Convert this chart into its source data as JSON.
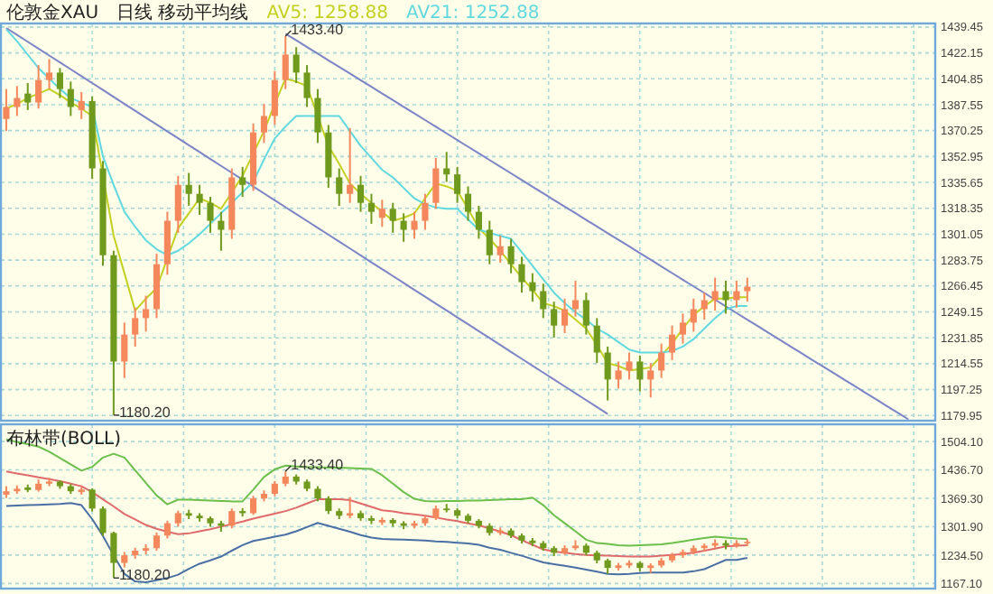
{
  "chart_data": [
    {
      "type": "candlestick",
      "title": "伦敦金XAU",
      "subtitle": "日线 移动平均线",
      "categories": [
        null,
        null,
        null,
        null,
        null,
        null,
        null,
        null,
        null,
        null,
        null,
        null,
        null,
        null,
        null,
        null,
        null,
        null,
        null,
        null,
        null,
        null,
        null,
        null,
        null,
        null,
        null,
        null,
        null,
        null,
        null,
        null,
        null,
        null,
        null,
        null,
        null,
        null,
        null,
        null,
        null,
        null,
        null,
        null,
        null,
        null,
        null,
        null,
        null,
        null,
        null,
        null,
        null,
        null,
        null,
        null,
        null,
        null,
        null,
        null,
        null,
        null,
        null,
        null,
        null,
        null,
        null,
        null,
        null,
        null,
        null,
        null,
        null,
        null,
        null,
        null,
        null,
        null,
        null,
        null,
        null,
        null,
        null,
        null,
        null,
        null,
        null
      ],
      "ohlc": [
        [
          1378,
          1398,
          1370,
          1386
        ],
        [
          1386,
          1400,
          1380,
          1392
        ],
        [
          1395,
          1402,
          1384,
          1389
        ],
        [
          1389,
          1414,
          1385,
          1404
        ],
        [
          1404,
          1418,
          1398,
          1409
        ],
        [
          1409,
          1412,
          1392,
          1398
        ],
        [
          1398,
          1403,
          1380,
          1386
        ],
        [
          1384,
          1396,
          1378,
          1390
        ],
        [
          1390,
          1393,
          1338,
          1345
        ],
        [
          1345,
          1350,
          1280,
          1287
        ],
        [
          1287,
          1290,
          1180.2,
          1216
        ],
        [
          1216,
          1242,
          1205,
          1234
        ],
        [
          1234,
          1252,
          1226,
          1245
        ],
        [
          1245,
          1260,
          1236,
          1251
        ],
        [
          1251,
          1288,
          1245,
          1281
        ],
        [
          1281,
          1316,
          1274,
          1310
        ],
        [
          1310,
          1340,
          1302,
          1334
        ],
        [
          1334,
          1342,
          1320,
          1328
        ],
        [
          1328,
          1334,
          1314,
          1322
        ],
        [
          1322,
          1326,
          1302,
          1310
        ],
        [
          1310,
          1316,
          1290,
          1304
        ],
        [
          1304,
          1345,
          1298,
          1339
        ],
        [
          1339,
          1346,
          1326,
          1334
        ],
        [
          1334,
          1375,
          1330,
          1369
        ],
        [
          1369,
          1388,
          1362,
          1380
        ],
        [
          1380,
          1410,
          1374,
          1404
        ],
        [
          1404,
          1433.4,
          1398,
          1421
        ],
        [
          1421,
          1426,
          1402,
          1409
        ],
        [
          1409,
          1414,
          1386,
          1392
        ],
        [
          1392,
          1398,
          1362,
          1369
        ],
        [
          1369,
          1374,
          1332,
          1339
        ],
        [
          1339,
          1345,
          1320,
          1328
        ],
        [
          1328,
          1372,
          1322,
          1334
        ],
        [
          1334,
          1340,
          1316,
          1322
        ],
        [
          1322,
          1328,
          1308,
          1316
        ],
        [
          1312,
          1324,
          1306,
          1318
        ],
        [
          1318,
          1322,
          1302,
          1310
        ],
        [
          1310,
          1315,
          1296,
          1304
        ],
        [
          1304,
          1316,
          1298,
          1310
        ],
        [
          1310,
          1328,
          1304,
          1322
        ],
        [
          1322,
          1352,
          1318,
          1345
        ],
        [
          1345,
          1356,
          1336,
          1341
        ],
        [
          1341,
          1346,
          1322,
          1328
        ],
        [
          1328,
          1333,
          1310,
          1316
        ],
        [
          1316,
          1320,
          1298,
          1304
        ],
        [
          1304,
          1310,
          1281,
          1287
        ],
        [
          1287,
          1300,
          1282,
          1293
        ],
        [
          1293,
          1298,
          1275,
          1281
        ],
        [
          1281,
          1286,
          1262,
          1269
        ],
        [
          1269,
          1275,
          1256,
          1263
        ],
        [
          1263,
          1268,
          1245,
          1251
        ],
        [
          1251,
          1256,
          1232,
          1240
        ],
        [
          1240,
          1258,
          1235,
          1251
        ],
        [
          1251,
          1270,
          1246,
          1257
        ],
        [
          1257,
          1262,
          1234,
          1240
        ],
        [
          1240,
          1245,
          1215,
          1222
        ],
        [
          1222,
          1226,
          1190,
          1204
        ],
        [
          1204,
          1216,
          1198,
          1210
        ],
        [
          1210,
          1222,
          1204,
          1216
        ],
        [
          1216,
          1220,
          1196,
          1204
        ],
        [
          1204,
          1215,
          1192,
          1210
        ],
        [
          1210,
          1228,
          1205,
          1222
        ],
        [
          1222,
          1240,
          1217,
          1234
        ],
        [
          1234,
          1248,
          1228,
          1242
        ],
        [
          1242,
          1258,
          1236,
          1251
        ],
        [
          1251,
          1262,
          1244,
          1257
        ],
        [
          1257,
          1272,
          1250,
          1263
        ],
        [
          1263,
          1270,
          1248,
          1257
        ],
        [
          1257,
          1270,
          1252,
          1263
        ],
        [
          1263,
          1272,
          1256,
          1266
        ],
        null,
        null,
        null,
        null,
        null,
        null,
        null,
        null,
        null,
        null,
        null,
        null,
        null,
        null,
        null,
        null,
        null
      ],
      "series": [
        {
          "type": "line",
          "color": "#7c84c8",
          "values": [
            1438.8,
            1434.2,
            1429.6,
            1425.0,
            1420.4,
            1415.8,
            1411.2,
            1406.6,
            1402.0,
            1397.4,
            1392.7,
            1388.1,
            1383.5,
            1378.9,
            1374.3,
            1369.7,
            1365.1,
            1360.5,
            1355.9,
            1351.3,
            1346.7,
            1342.1,
            1337.5,
            1332.9,
            1328.3,
            1323.7,
            1319.1,
            1314.5,
            1309.9,
            1305.3,
            1300.7,
            1296.1,
            1291.5,
            1286.9,
            1282.3,
            1277.7,
            1273.1,
            1268.5,
            1263.9,
            1259.3,
            1254.7,
            1250.1,
            1245.5,
            1240.9,
            1236.3,
            1231.7,
            1227.1,
            1222.4,
            1217.8,
            1213.2,
            1208.6,
            1204.0,
            1199.4,
            1194.8,
            1190.2,
            1185.6,
            1181.0,
            null,
            null,
            null,
            null,
            null,
            null,
            null,
            null,
            null,
            null,
            null,
            null,
            null,
            null,
            null,
            null,
            null,
            null,
            null,
            null,
            null,
            null,
            null,
            null,
            null,
            null,
            null,
            null,
            null,
            null
          ]
        },
        {
          "type": "line",
          "color": "#7c84c8",
          "values": [
            null,
            null,
            null,
            null,
            null,
            null,
            null,
            null,
            null,
            null,
            null,
            null,
            null,
            null,
            null,
            null,
            null,
            null,
            null,
            null,
            null,
            null,
            null,
            null,
            null,
            null,
            1435.0,
            1430.6,
            1426.1,
            1421.7,
            1417.2,
            1412.8,
            1408.4,
            1403.9,
            1399.5,
            1395.0,
            1390.6,
            1386.1,
            1381.7,
            1377.3,
            1372.8,
            1368.4,
            1363.9,
            1359.5,
            1355.0,
            1350.6,
            1346.2,
            1341.7,
            1337.3,
            1332.8,
            1328.4,
            1323.9,
            1319.5,
            1315.1,
            1310.6,
            1306.2,
            1301.7,
            1297.3,
            1292.9,
            1288.4,
            1284.0,
            1279.5,
            1275.1,
            1270.6,
            1266.2,
            1261.8,
            1257.3,
            1252.9,
            1248.4,
            1244.0,
            1239.6,
            1235.1,
            1230.7,
            1226.2,
            1221.8,
            1217.3,
            1212.9,
            1208.5,
            1204.0,
            1199.6,
            1195.1,
            1190.7,
            1186.2,
            1181.8,
            1177.4,
            null,
            null
          ]
        },
        {
          "type": "line",
          "name": "AV5: 1258.88",
          "color": "#c4d020",
          "values": [
            1385,
            1388,
            1392,
            1395,
            1398,
            1394,
            1389,
            1385,
            1380,
            1340,
            1300,
            1275,
            1250,
            1258,
            1265,
            1285,
            1305,
            1315,
            1325,
            1322,
            1318,
            1329,
            1340,
            1355,
            1370,
            1388,
            1405,
            1403,
            1400,
            1380,
            1360,
            1348,
            1335,
            1328,
            1322,
            1316,
            1310,
            1312,
            1315,
            1325,
            1335,
            1333,
            1330,
            1318,
            1305,
            1298,
            1290,
            1281,
            1272,
            1264,
            1255,
            1253,
            1250,
            1244,
            1238,
            1227,
            1215,
            1213,
            1210,
            1211,
            1212,
            1220,
            1228,
            1238,
            1247,
            1253,
            1258,
            1258,
            1259,
            1259,
            null,
            null,
            null,
            null,
            null,
            null,
            null,
            null,
            null,
            null,
            null,
            null,
            null,
            null,
            null,
            null,
            null
          ]
        },
        {
          "type": "line",
          "name": "AV21: 1252.88",
          "color": "#5fd8e0",
          "values": [
            1438,
            1430,
            1421,
            1412,
            1405,
            1398,
            1392,
            1389,
            1386,
            1353,
            1334,
            1316,
            1306,
            1297,
            1291,
            1287,
            1290,
            1295,
            1301,
            1308,
            1315,
            1322,
            1329,
            1336,
            1351,
            1365,
            1373,
            1380,
            1380,
            1380,
            1380,
            1380,
            1370,
            1360,
            1352,
            1344,
            1339,
            1332,
            1325,
            1321,
            1319,
            1318,
            1318,
            1311,
            1304,
            1302,
            1300,
            1298,
            1289,
            1280,
            1271,
            1262,
            1255,
            1249,
            1244,
            1238,
            1234,
            1229,
            1224,
            1222,
            1222,
            1222,
            1223,
            1226,
            1231,
            1238,
            1245,
            1251,
            1253,
            1253,
            null,
            null,
            null,
            null,
            null,
            null,
            null,
            null,
            null,
            null,
            null,
            null,
            null,
            null,
            null,
            null,
            null
          ]
        }
      ],
      "ylim": [
        1176.5,
        1441.8
      ],
      "yticks": [
        1439.45,
        1422.15,
        1404.85,
        1387.55,
        1370.25,
        1352.95,
        1335.65,
        1318.35,
        1301.05,
        1283.75,
        1266.45,
        1249.15,
        1231.85,
        1214.55,
        1197.25,
        1179.95
      ],
      "grid": true,
      "tick_labels": "y",
      "annotations": [
        "1433.40",
        "1180.20"
      ]
    },
    {
      "type": "candlestick",
      "title": "布林带(BOLL)",
      "categories": [
        null,
        null,
        null,
        null,
        null,
        null,
        null,
        null,
        null,
        null,
        null,
        null,
        null,
        null,
        null,
        null,
        null,
        null,
        null,
        null,
        null,
        null,
        null,
        null,
        null,
        null,
        null,
        null,
        null,
        null,
        null,
        null,
        null,
        null,
        null,
        null,
        null,
        null,
        null,
        null,
        null,
        null,
        null,
        null,
        null,
        null,
        null,
        null,
        null,
        null,
        null,
        null,
        null,
        null,
        null,
        null,
        null,
        null,
        null,
        null,
        null,
        null,
        null,
        null,
        null,
        null,
        null,
        null,
        null,
        null,
        null,
        null,
        null,
        null,
        null,
        null,
        null,
        null,
        null,
        null,
        null,
        null,
        null,
        null,
        null,
        null,
        null
      ],
      "ohlc": [
        [
          1378,
          1398,
          1370,
          1386
        ],
        [
          1386,
          1400,
          1380,
          1392
        ],
        [
          1395,
          1402,
          1384,
          1389
        ],
        [
          1389,
          1414,
          1385,
          1404
        ],
        [
          1404,
          1418,
          1398,
          1409
        ],
        [
          1409,
          1412,
          1392,
          1398
        ],
        [
          1398,
          1403,
          1380,
          1386
        ],
        [
          1384,
          1396,
          1378,
          1390
        ],
        [
          1390,
          1393,
          1338,
          1345
        ],
        [
          1345,
          1350,
          1280,
          1287
        ],
        [
          1287,
          1290,
          1180.2,
          1216
        ],
        [
          1216,
          1242,
          1205,
          1234
        ],
        [
          1234,
          1252,
          1226,
          1245
        ],
        [
          1245,
          1260,
          1236,
          1251
        ],
        [
          1251,
          1288,
          1245,
          1281
        ],
        [
          1281,
          1316,
          1274,
          1310
        ],
        [
          1310,
          1340,
          1302,
          1334
        ],
        [
          1334,
          1342,
          1320,
          1328
        ],
        [
          1328,
          1334,
          1314,
          1322
        ],
        [
          1322,
          1326,
          1302,
          1310
        ],
        [
          1310,
          1316,
          1290,
          1304
        ],
        [
          1304,
          1345,
          1298,
          1339
        ],
        [
          1339,
          1346,
          1326,
          1334
        ],
        [
          1334,
          1375,
          1330,
          1369
        ],
        [
          1369,
          1388,
          1362,
          1380
        ],
        [
          1380,
          1410,
          1374,
          1404
        ],
        [
          1404,
          1433.4,
          1398,
          1421
        ],
        [
          1421,
          1426,
          1402,
          1409
        ],
        [
          1409,
          1414,
          1386,
          1392
        ],
        [
          1392,
          1398,
          1362,
          1369
        ],
        [
          1369,
          1374,
          1332,
          1339
        ],
        [
          1339,
          1345,
          1320,
          1328
        ],
        [
          1328,
          1372,
          1322,
          1334
        ],
        [
          1334,
          1340,
          1316,
          1322
        ],
        [
          1322,
          1328,
          1308,
          1316
        ],
        [
          1312,
          1324,
          1306,
          1318
        ],
        [
          1318,
          1322,
          1302,
          1310
        ],
        [
          1310,
          1315,
          1296,
          1304
        ],
        [
          1304,
          1316,
          1298,
          1310
        ],
        [
          1310,
          1328,
          1304,
          1322
        ],
        [
          1322,
          1352,
          1318,
          1345
        ],
        [
          1345,
          1356,
          1336,
          1341
        ],
        [
          1341,
          1346,
          1322,
          1328
        ],
        [
          1328,
          1333,
          1310,
          1316
        ],
        [
          1316,
          1320,
          1298,
          1304
        ],
        [
          1304,
          1310,
          1281,
          1287
        ],
        [
          1287,
          1300,
          1282,
          1293
        ],
        [
          1293,
          1298,
          1275,
          1281
        ],
        [
          1281,
          1286,
          1262,
          1269
        ],
        [
          1269,
          1275,
          1256,
          1263
        ],
        [
          1263,
          1268,
          1245,
          1251
        ],
        [
          1251,
          1256,
          1232,
          1240
        ],
        [
          1240,
          1258,
          1235,
          1251
        ],
        [
          1251,
          1270,
          1246,
          1257
        ],
        [
          1257,
          1262,
          1234,
          1240
        ],
        [
          1240,
          1245,
          1215,
          1222
        ],
        [
          1222,
          1226,
          1190,
          1204
        ],
        [
          1204,
          1216,
          1198,
          1210
        ],
        [
          1210,
          1222,
          1204,
          1216
        ],
        [
          1216,
          1220,
          1196,
          1204
        ],
        [
          1204,
          1215,
          1192,
          1210
        ],
        [
          1210,
          1228,
          1205,
          1222
        ],
        [
          1222,
          1240,
          1217,
          1234
        ],
        [
          1234,
          1248,
          1228,
          1242
        ],
        [
          1242,
          1258,
          1236,
          1251
        ],
        [
          1251,
          1262,
          1244,
          1257
        ],
        [
          1257,
          1272,
          1250,
          1263
        ],
        [
          1263,
          1270,
          1248,
          1257
        ],
        [
          1257,
          1270,
          1252,
          1263
        ],
        [
          1263,
          1272,
          1256,
          1266
        ],
        null,
        null,
        null,
        null,
        null,
        null,
        null,
        null,
        null,
        null,
        null,
        null,
        null,
        null,
        null,
        null,
        null
      ],
      "series": [
        {
          "type": "line",
          "color": "#6cbf4a",
          "values": [
            1509,
            1503,
            1498,
            1492,
            1480,
            1465,
            1450,
            1435,
            1444,
            1466,
            1475,
            1466,
            1436,
            1406,
            1376,
            1355,
            1366,
            1366,
            1365,
            1364,
            1363,
            1362,
            1362,
            1390,
            1420,
            1438,
            1447,
            1445,
            1443,
            1443,
            1442,
            1442,
            1441,
            1440,
            1439,
            1424,
            1404,
            1384,
            1368,
            1363,
            1362,
            1363,
            1363,
            1364,
            1364,
            1365,
            1366,
            1367,
            1367,
            1371,
            1353,
            1329,
            1310,
            1291,
            1271,
            1263,
            1261,
            1258,
            1257,
            1258,
            1259,
            1260,
            1263,
            1267,
            1271,
            1275,
            1278,
            1276,
            1274,
            1273,
            null,
            null,
            null,
            null,
            null,
            null,
            null,
            null,
            null,
            null,
            null,
            null,
            null,
            null,
            null,
            null,
            null
          ]
        },
        {
          "type": "line",
          "color": "#e06a6a",
          "values": [
            1433,
            1428,
            1424,
            1419,
            1415,
            1410,
            1404,
            1398,
            1384,
            1367,
            1350,
            1332,
            1319,
            1306,
            1297,
            1290,
            1284,
            1286,
            1291,
            1296,
            1302,
            1308,
            1314,
            1321,
            1327,
            1333,
            1339,
            1347,
            1357,
            1367,
            1367,
            1367,
            1365,
            1357,
            1349,
            1341,
            1338,
            1334,
            1331,
            1328,
            1324,
            1319,
            1315,
            1310,
            1305,
            1298,
            1290,
            1282,
            1270,
            1259,
            1248,
            1243,
            1240,
            1237,
            1235,
            1234,
            1233,
            1232,
            1231,
            1231,
            1231,
            1233,
            1235,
            1237,
            1240,
            1245,
            1250,
            1255,
            1257,
            1258,
            null,
            null,
            null,
            null,
            null,
            null,
            null,
            null,
            null,
            null,
            null,
            null,
            null,
            null,
            null,
            null,
            null
          ]
        },
        {
          "type": "line",
          "color": "#4a6fa5",
          "values": [
            1351,
            1352,
            1353,
            1354,
            1355,
            1356,
            1358,
            1353,
            1320,
            1280,
            1234,
            1190,
            1172,
            1170,
            1175,
            1180,
            1188,
            1202,
            1214,
            1222,
            1231,
            1245,
            1258,
            1268,
            1273,
            1278,
            1283,
            1291,
            1301,
            1311,
            1304,
            1297,
            1290,
            1282,
            1276,
            1273,
            1272,
            1271,
            1270,
            1269,
            1267,
            1266,
            1264,
            1262,
            1259,
            1252,
            1247,
            1240,
            1233,
            1225,
            1217,
            1213,
            1209,
            1205,
            1200,
            1195,
            1190,
            1189,
            1190,
            1192,
            1193,
            1193,
            1193,
            1193,
            1196,
            1201,
            1212,
            1223,
            1223,
            1228,
            null,
            null,
            null,
            null,
            null,
            null,
            null,
            null,
            null,
            null,
            null,
            null,
            null,
            null,
            null,
            null,
            null
          ]
        }
      ],
      "ylim": [
        1155,
        1545
      ],
      "yticks": [
        {
          "value": 1504.1,
          "label": "1504.10"
        },
        {
          "value": 1436.7,
          "label": "1436.70"
        },
        {
          "value": 1369.3,
          "label": "1369.30"
        },
        {
          "value": 1301.9,
          "label": "1301.90"
        },
        {
          "value": 1234.5,
          "label": "1234.50"
        },
        {
          "value": 1167.1,
          "label": "1167.10"
        }
      ],
      "grid": true,
      "tick_labels": "y",
      "annotations": [
        "1433.40",
        "1180.20"
      ]
    }
  ]
}
